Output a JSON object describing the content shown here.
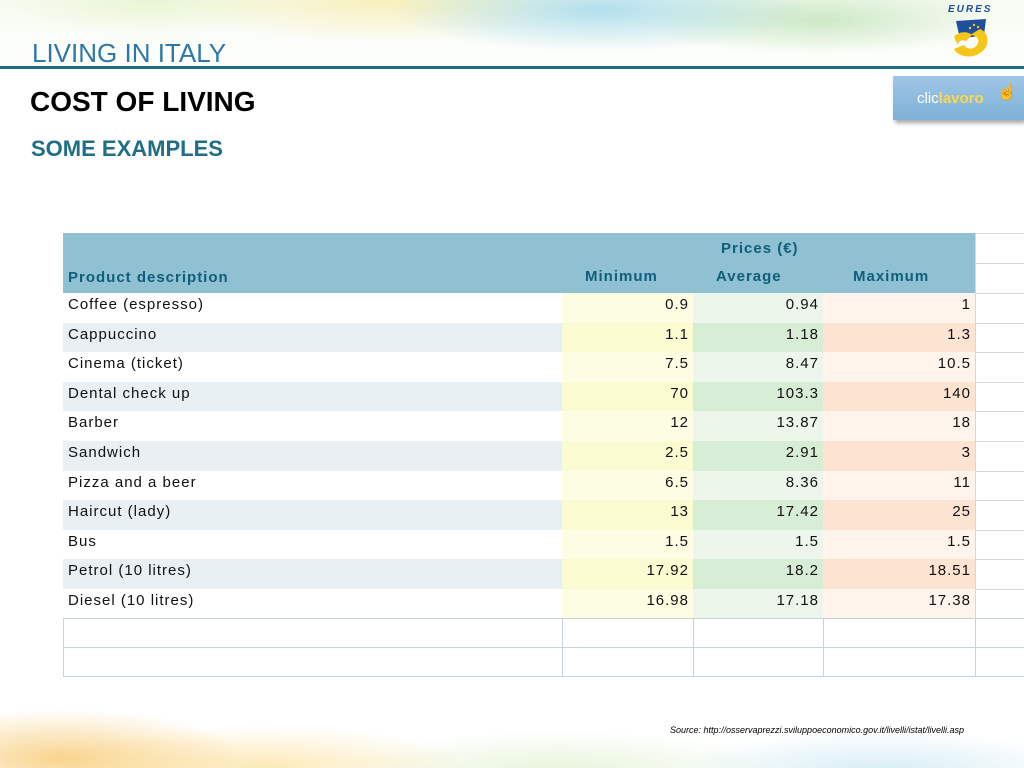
{
  "header": {
    "section_title": "LIVING IN ITALY",
    "title": "COST OF LIVING",
    "subtitle": "SOME EXAMPLES"
  },
  "logos": {
    "eures_text": "EURES",
    "cliclavoro_prefix": "clic",
    "cliclavoro_suffix": "lavoro"
  },
  "table": {
    "group_header": "Prices (€)",
    "columns": {
      "product": "Product description",
      "min": "Minimum",
      "avg": "Average",
      "max": "Maximum"
    },
    "rows": [
      {
        "product": "Coffee (espresso)",
        "min": "0.9",
        "avg": "0.94",
        "max": "1"
      },
      {
        "product": "Cappuccino",
        "min": "1.1",
        "avg": "1.18",
        "max": "1.3"
      },
      {
        "product": "Cinema (ticket)",
        "min": "7.5",
        "avg": "8.47",
        "max": "10.5"
      },
      {
        "product": "Dental check up",
        "min": "70",
        "avg": "103.3",
        "max": "140"
      },
      {
        "product": "Barber",
        "min": "12",
        "avg": "13.87",
        "max": "18"
      },
      {
        "product": "Sandwich",
        "min": "2.5",
        "avg": "2.91",
        "max": "3"
      },
      {
        "product": "Pizza and a beer",
        "min": "6.5",
        "avg": "8.36",
        "max": "11"
      },
      {
        "product": "Haircut (lady)",
        "min": "13",
        "avg": "17.42",
        "max": "25"
      },
      {
        "product": "Bus",
        "min": "1.5",
        "avg": "1.5",
        "max": "1.5"
      },
      {
        "product": "Petrol (10 litres)",
        "min": "17.92",
        "avg": "18.2",
        "max": "18.51"
      },
      {
        "product": "Diesel (10 litres)",
        "min": "16.98",
        "avg": "17.18",
        "max": "17.38"
      }
    ]
  },
  "source": "Source: http://osservaprezzi.sviluppoeconomico.gov.it/livelli/istat/livelli.asp",
  "colors": {
    "accent": "#1f6e86",
    "header_bg": "#8fc1d2",
    "section_title": "#2d78a8"
  }
}
